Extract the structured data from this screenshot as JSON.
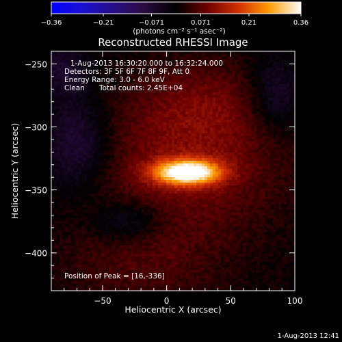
{
  "chart_data": {
    "type": "heatmap",
    "title": "Reconstructed RHESSI Image",
    "xlabel": "Heliocentric X (arcsec)",
    "ylabel": "Heliocentric Y (arcsec)",
    "xlim": [
      -90,
      100
    ],
    "ylim": [
      -430,
      -240
    ],
    "x_ticks": [
      -50,
      0,
      50,
      100
    ],
    "y_ticks": [
      -250,
      -300,
      -350,
      -400
    ],
    "colorbar": {
      "range": [
        -0.36,
        0.36
      ],
      "tick_labels": [
        "-0.36",
        "-0.21",
        "-0.071",
        "0.071",
        "0.21",
        "0.36"
      ],
      "units_label": "(photons cm⁻² s⁻¹ asec⁻²)"
    },
    "annotations": {
      "time_range": "1-Aug-2013 16:30:20.000 to 16:32:24.000",
      "detectors": "Detectors: 3F 5F 6F 7F 8F 9F, Att 0",
      "energy_range": "Energy Range: 3.0 - 6.0 keV",
      "method": "Clean",
      "total_counts": "Total counts: 2.45E+04",
      "peak_position": "Position of Peak = [16,-336]"
    },
    "peak": {
      "x": 16,
      "y": -336,
      "value": 0.36
    },
    "timestamp": "1-Aug-2013 12:41"
  }
}
